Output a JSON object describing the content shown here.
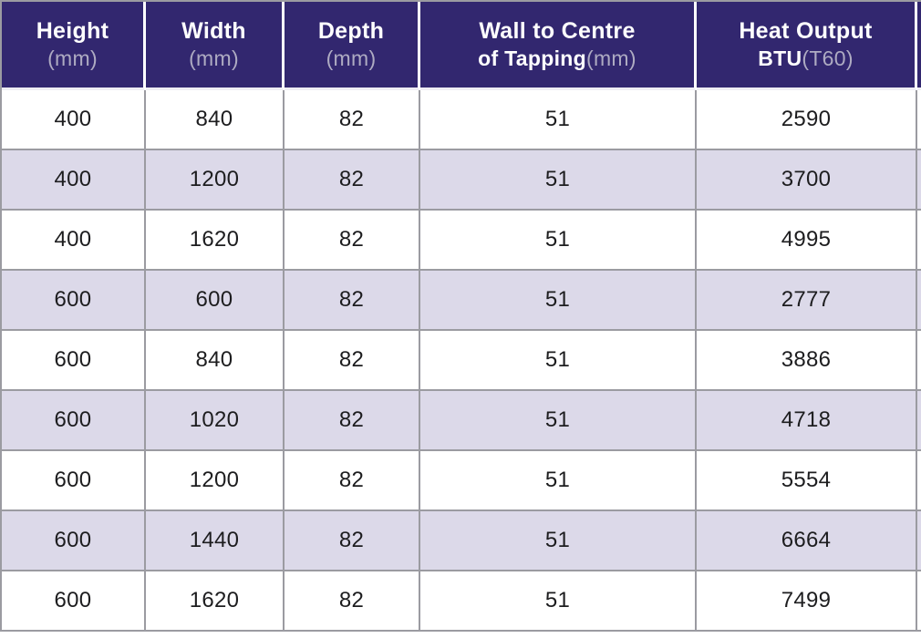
{
  "table": {
    "columns": [
      {
        "l1b": "Height",
        "l2b": "",
        "l2l": "(mm)"
      },
      {
        "l1b": "Width",
        "l2b": "",
        "l2l": "(mm)"
      },
      {
        "l1b": "Depth",
        "l2b": "",
        "l2l": "(mm)"
      },
      {
        "l1b": "Wall to Centre",
        "l2b": "of Tapping",
        "l2l": "(mm)"
      },
      {
        "l1b": "Heat Output",
        "l2b": "BTU",
        "l2l": "(T60)"
      }
    ],
    "rows": [
      [
        "400",
        "840",
        "82",
        "51",
        "2590"
      ],
      [
        "400",
        "1200",
        "82",
        "51",
        "3700"
      ],
      [
        "400",
        "1620",
        "82",
        "51",
        "4995"
      ],
      [
        "600",
        "600",
        "82",
        "51",
        "2777"
      ],
      [
        "600",
        "840",
        "82",
        "51",
        "3886"
      ],
      [
        "600",
        "1020",
        "82",
        "51",
        "4718"
      ],
      [
        "600",
        "1200",
        "82",
        "51",
        "5554"
      ],
      [
        "600",
        "1440",
        "82",
        "51",
        "6664"
      ],
      [
        "600",
        "1620",
        "82",
        "51",
        "7499"
      ]
    ]
  },
  "colors": {
    "header_bg": "#32276f",
    "stripe": "#dcd9e9",
    "border": "#9b9ba1",
    "header_text": "#ffffff",
    "header_light_text": "#aeabc2",
    "body_text": "#1d1d1f"
  }
}
